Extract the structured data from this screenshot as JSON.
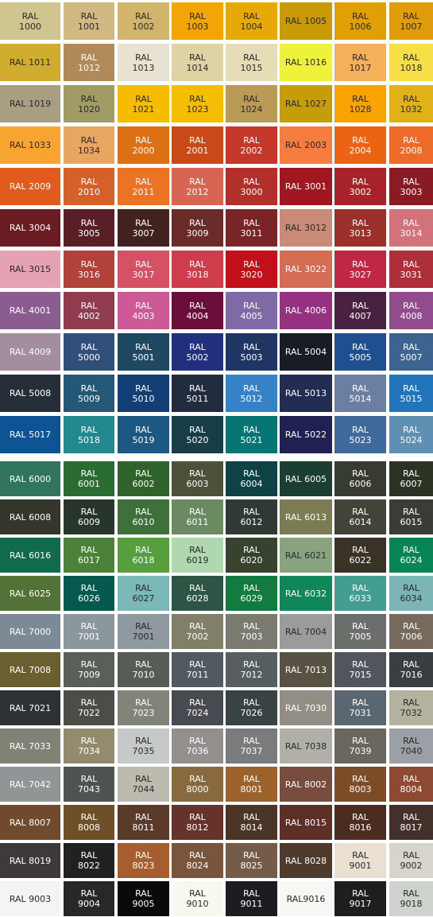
{
  "rows": [
    [
      [
        "RAL\n1000",
        "#d0c48f"
      ],
      [
        "RAL\n1001",
        "#d2b984"
      ],
      [
        "RAL\n1002",
        "#d2b46c"
      ],
      [
        "RAL\n1003",
        "#f3a505"
      ],
      [
        "RAL\n1004",
        "#e6a905"
      ],
      [
        "RAL 1005",
        "#c99a06"
      ],
      [
        "RAL\n1006",
        "#e0a002"
      ],
      [
        "RAL\n1007",
        "#e19c0b"
      ]
    ],
    [
      [
        "RAL 1011",
        "#d0ac2f"
      ],
      [
        "RAL\n1012",
        "#b08a58"
      ],
      [
        "RAL\n1013",
        "#e8e2d2"
      ],
      [
        "RAL\n1014",
        "#dfd2a5"
      ],
      [
        "RAL\n1015",
        "#e6dcb8"
      ],
      [
        "RAL 1016",
        "#eef23a"
      ],
      [
        "RAL\n1017",
        "#f5b15a"
      ],
      [
        "RAL\n1018",
        "#f6df47"
      ]
    ],
    [
      [
        "RAL 1019",
        "#a89e82"
      ],
      [
        "RAL\n1020",
        "#a19c66"
      ],
      [
        "RAL\n1021",
        "#f6bd00"
      ],
      [
        "RAL\n1023",
        "#f5be00"
      ],
      [
        "RAL\n1024",
        "#b99a57"
      ],
      [
        "RAL 1027",
        "#c49d08"
      ],
      [
        "RAL\n1028",
        "#f8a300"
      ],
      [
        "RAL\n1032",
        "#e0b218"
      ]
    ],
    [
      [
        "RAL 1033",
        "#f8a431"
      ],
      [
        "RAL\n1034",
        "#e8a660"
      ],
      [
        "RAL\n2000",
        "#dc7015"
      ],
      [
        "RAL\n2001",
        "#c84a19"
      ],
      [
        "RAL\n2002",
        "#c5372b"
      ],
      [
        "RAL 2003",
        "#f77c3f"
      ],
      [
        "RAL\n2004",
        "#ea6413"
      ],
      [
        "RAL\n2008",
        "#ed6a29"
      ]
    ],
    [
      [
        "RAL 2009",
        "#e05c1c"
      ],
      [
        "RAL\n2010",
        "#d6602a"
      ],
      [
        "RAL\n2011",
        "#ec7224"
      ],
      [
        "RAL\n2012",
        "#d86552"
      ],
      [
        "RAL\n3000",
        "#b23029"
      ],
      [
        "RAL 3001",
        "#a1171f"
      ],
      [
        "RAL\n3002",
        "#a8222a"
      ],
      [
        "RAL\n3003",
        "#8a1b23"
      ]
    ],
    [
      [
        "RAL 3004",
        "#6b1c23"
      ],
      [
        "RAL\n3005",
        "#5a1f26"
      ],
      [
        "RAL\n3007",
        "#42221f"
      ],
      [
        "RAL\n3009",
        "#6b2b28"
      ],
      [
        "RAL\n3011",
        "#7a2427"
      ],
      [
        "RAL 3012",
        "#c98a78"
      ],
      [
        "RAL\n3013",
        "#9b2f2a"
      ],
      [
        "RAL\n3014",
        "#d2727b"
      ]
    ],
    [
      [
        "RAL 3015",
        "#e5a2b3"
      ],
      [
        "RAL\n3016",
        "#b2413a"
      ],
      [
        "RAL\n3017",
        "#d55264"
      ],
      [
        "RAL\n3018",
        "#cf3c4c"
      ],
      [
        "RAL\n3020",
        "#c1121c"
      ],
      [
        "RAL 3022",
        "#d56c54"
      ],
      [
        "RAL\n3027",
        "#c02745"
      ],
      [
        "RAL\n3031",
        "#ae2f3a"
      ]
    ],
    [
      [
        "RAL 4001",
        "#8b5c8f"
      ],
      [
        "RAL\n4002",
        "#913b4f"
      ],
      [
        "RAL\n4003",
        "#cd5996"
      ],
      [
        "RAL\n4004",
        "#6b0f3a"
      ],
      [
        "RAL\n4005",
        "#7e6aa5"
      ],
      [
        "RAL 4006",
        "#963080"
      ],
      [
        "RAL\n4007",
        "#4a2241"
      ],
      [
        "RAL\n4008",
        "#904c8c"
      ]
    ],
    [
      [
        "RAL 4009",
        "#a38d9f"
      ],
      [
        "RAL\n5000",
        "#2f4e7a"
      ],
      [
        "RAL\n5001",
        "#1f4862"
      ],
      [
        "RAL\n5002",
        "#20307d"
      ],
      [
        "RAL\n5003",
        "#1f3563"
      ],
      [
        "RAL 5004",
        "#1a1c25"
      ],
      [
        "RAL\n5005",
        "#1f4f8f"
      ],
      [
        "RAL\n5007",
        "#3d6391"
      ]
    ],
    [
      [
        "RAL 5008",
        "#262f38"
      ],
      [
        "RAL\n5009",
        "#245877"
      ],
      [
        "RAL\n5010",
        "#113e74"
      ],
      [
        "RAL\n5011",
        "#232c3f"
      ],
      [
        "RAL\n5012",
        "#3682c6"
      ],
      [
        "RAL 5013",
        "#232d53"
      ],
      [
        "RAL\n5014",
        "#6a7fa1"
      ],
      [
        "RAL\n5015",
        "#2274bb"
      ]
    ],
    [
      [
        "RAL 5017",
        "#0e5494"
      ],
      [
        "RAL\n5018",
        "#21898f"
      ],
      [
        "RAL\n5019",
        "#1d5784"
      ],
      [
        "RAL\n5020",
        "#173e48"
      ],
      [
        "RAL\n5021",
        "#067574"
      ],
      [
        "RAL 5022",
        "#212053"
      ],
      [
        "RAL\n5023",
        "#3f6a9c"
      ],
      [
        "RAL\n5024",
        "#5f8fb3"
      ]
    ],
    [
      [
        "RAL 6000",
        "#30765e"
      ],
      [
        "RAL\n6001",
        "#2b6d31"
      ],
      [
        "RAL\n6002",
        "#30622c"
      ],
      [
        "RAL\n6003",
        "#4c5139"
      ],
      [
        "RAL\n6004",
        "#0e4244"
      ],
      [
        "RAL 6005",
        "#1a3e32"
      ],
      [
        "RAL\n6006",
        "#383b31"
      ],
      [
        "RAL\n6007",
        "#2c3325"
      ]
    ],
    [
      [
        "RAL 6008",
        "#34352b"
      ],
      [
        "RAL\n6009",
        "#27352a"
      ],
      [
        "RAL\n6010",
        "#3d7139"
      ],
      [
        "RAL\n6011",
        "#6a8b62"
      ],
      [
        "RAL\n6012",
        "#303a35"
      ],
      [
        "RAL 6013",
        "#7b7b54"
      ],
      [
        "RAL\n6014",
        "#43433a"
      ],
      [
        "RAL\n6015",
        "#3a3d36"
      ]
    ],
    [
      [
        "RAL 6016",
        "#0f6b4a"
      ],
      [
        "RAL\n6017",
        "#4c8139"
      ],
      [
        "RAL\n6018",
        "#579f3e"
      ],
      [
        "RAL\n6019",
        "#b0d8b0"
      ],
      [
        "RAL\n6020",
        "#37422f"
      ],
      [
        "RAL 6021",
        "#89a37f"
      ],
      [
        "RAL\n6022",
        "#393327"
      ],
      [
        "RAL\n6024",
        "#078557"
      ]
    ],
    [
      [
        "RAL 6025",
        "#537237"
      ],
      [
        "RAL\n6026",
        "#05594f"
      ],
      [
        "RAL\n6027",
        "#7bb8b7"
      ],
      [
        "RAL\n6028",
        "#2d5546"
      ],
      [
        "RAL\n6029",
        "#127b3f"
      ],
      [
        "RAL 6032",
        "#0f8758"
      ],
      [
        "RAL\n6033",
        "#439d91"
      ],
      [
        "RAL\n6034",
        "#7bb5b5"
      ]
    ],
    [
      [
        "RAL 7000",
        "#7b8a94"
      ],
      [
        "RAL\n7001",
        "#8c979b"
      ],
      [
        "RAL\n7001",
        "#8e9aa0"
      ],
      [
        "RAL\n7002",
        "#817f68"
      ],
      [
        "RAL\n7003",
        "#7b7a6e"
      ],
      [
        "RAL 7004",
        "#9b9b9b"
      ],
      [
        "RAL\n7005",
        "#6b6e6b"
      ],
      [
        "RAL\n7006",
        "#756a5c"
      ]
    ],
    [
      [
        "RAL 7008",
        "#6a5f31"
      ],
      [
        "RAL\n7009",
        "#5a5f58"
      ],
      [
        "RAL\n7010",
        "#585c56"
      ],
      [
        "RAL\n7011",
        "#525a5f"
      ],
      [
        "RAL\n7012",
        "#575e61"
      ],
      [
        "RAL 7013",
        "#575244"
      ],
      [
        "RAL\n7015",
        "#51565d"
      ],
      [
        "RAL\n7016",
        "#383e42"
      ]
    ],
    [
      [
        "RAL 7021",
        "#2f3234"
      ],
      [
        "RAL\n7022",
        "#4b4d46"
      ],
      [
        "RAL\n7023",
        "#818479"
      ],
      [
        "RAL\n7024",
        "#474a50"
      ],
      [
        "RAL\n7026",
        "#374345"
      ],
      [
        "RAL 7030",
        "#928e85"
      ],
      [
        "RAL\n7031",
        "#5b6770"
      ],
      [
        "RAL\n7032",
        "#b5b3a0"
      ]
    ],
    [
      [
        "RAL 7033",
        "#7f8274"
      ],
      [
        "RAL\n7034",
        "#928b6e"
      ],
      [
        "RAL\n7035",
        "#c5c9c7"
      ],
      [
        "RAL\n7036",
        "#948f8f"
      ],
      [
        "RAL\n7037",
        "#7a7b7c"
      ],
      [
        "RAL 7038",
        "#b0b0a9"
      ],
      [
        "RAL\n7039",
        "#6b665e"
      ],
      [
        "RAL\n7040",
        "#9aa0a5"
      ]
    ],
    [
      [
        "RAL 7042",
        "#8f9695"
      ],
      [
        "RAL\n7043",
        "#4e5452"
      ],
      [
        "RAL\n7044",
        "#bdbab0"
      ],
      [
        "RAL\n8000",
        "#896a3f"
      ],
      [
        "RAL\n8001",
        "#9d622b"
      ],
      [
        "RAL 8002",
        "#794d3e"
      ],
      [
        "RAL\n8003",
        "#7e4b27"
      ],
      [
        "RAL\n8004",
        "#8d4931"
      ]
    ],
    [
      [
        "RAL 8007",
        "#6f4a2f"
      ],
      [
        "RAL\n8008",
        "#6f4f28"
      ],
      [
        "RAL\n8011",
        "#5a3a29"
      ],
      [
        "RAL\n8012",
        "#66332b"
      ],
      [
        "RAL\n8014",
        "#4a3526"
      ],
      [
        "RAL 8015",
        "#5e2f26"
      ],
      [
        "RAL\n8016",
        "#4c2b20"
      ],
      [
        "RAL\n8017",
        "#44302a"
      ]
    ],
    [
      [
        "RAL 8019",
        "#3f3a3a"
      ],
      [
        "RAL\n8022",
        "#212121"
      ],
      [
        "RAL\n8023",
        "#a65e2f"
      ],
      [
        "RAL\n8024",
        "#79553d"
      ],
      [
        "RAL\n8025",
        "#755c49"
      ],
      [
        "RAL 8028",
        "#4e3b2b"
      ],
      [
        "RAL\n9001",
        "#e9e0d2"
      ],
      [
        "RAL\n9002",
        "#d7d5cb"
      ]
    ],
    [
      [
        "RAL 9003",
        "#f4f4f4"
      ],
      [
        "RAL\n9004",
        "#282828"
      ],
      [
        "RAL\n9005",
        "#0a0a0a"
      ],
      [
        "RAL\n9010",
        "#f7f9ef"
      ],
      [
        "RAL\n9011",
        "#1c1c22"
      ],
      [
        "RAL9016",
        "#f6f8f4"
      ],
      [
        "RAL\n9017",
        "#1e1e1e"
      ],
      [
        "RAL\n9018",
        "#cfd3cd"
      ]
    ]
  ]
}
